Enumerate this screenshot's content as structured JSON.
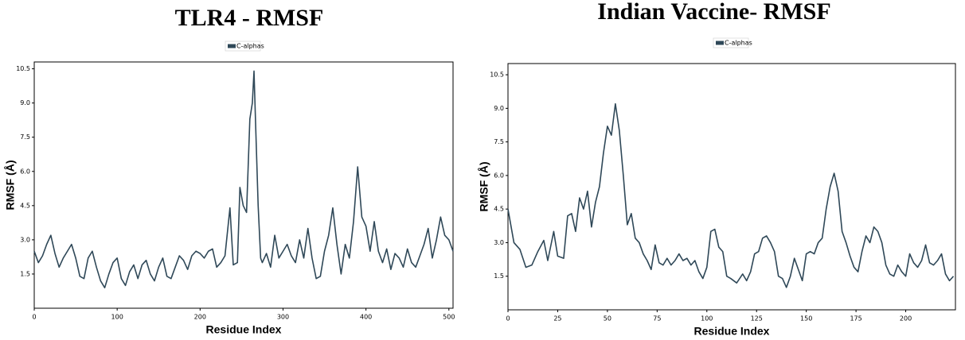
{
  "chart_data": [
    {
      "type": "line",
      "title": "TLR4 - RMSF",
      "x_label": "Residue Index",
      "y_label": "RMSF (Å)",
      "x": [
        0,
        5,
        10,
        15,
        20,
        25,
        30,
        35,
        40,
        45,
        50,
        55,
        60,
        65,
        70,
        75,
        80,
        85,
        90,
        95,
        100,
        105,
        110,
        115,
        120,
        125,
        130,
        135,
        140,
        145,
        150,
        155,
        160,
        165,
        170,
        175,
        180,
        185,
        190,
        195,
        200,
        205,
        210,
        215,
        220,
        225,
        230,
        236,
        240,
        245,
        248,
        252,
        256,
        260,
        263,
        265,
        267,
        270,
        273,
        275,
        280,
        285,
        290,
        295,
        300,
        305,
        310,
        315,
        320,
        325,
        330,
        335,
        340,
        345,
        350,
        355,
        360,
        365,
        370,
        375,
        380,
        385,
        390,
        395,
        400,
        405,
        410,
        415,
        420,
        425,
        430,
        435,
        440,
        445,
        450,
        455,
        460,
        465,
        470,
        475,
        480,
        485,
        490,
        495,
        500,
        505
      ],
      "series": [
        {
          "name": "C-alphas",
          "color": "#2f4858",
          "values": [
            2.5,
            2.0,
            2.3,
            2.8,
            3.2,
            2.4,
            1.8,
            2.2,
            2.5,
            2.8,
            2.2,
            1.4,
            1.3,
            2.2,
            2.5,
            1.8,
            1.2,
            0.9,
            1.5,
            2.0,
            2.2,
            1.3,
            1.0,
            1.6,
            1.9,
            1.3,
            1.9,
            2.1,
            1.5,
            1.2,
            1.8,
            2.2,
            1.4,
            1.3,
            1.8,
            2.3,
            2.1,
            1.7,
            2.3,
            2.5,
            2.4,
            2.2,
            2.5,
            2.6,
            1.8,
            2.0,
            2.3,
            4.4,
            1.9,
            2.0,
            5.3,
            4.5,
            4.2,
            8.3,
            9.0,
            10.4,
            8.0,
            4.5,
            2.2,
            2.0,
            2.4,
            1.8,
            3.2,
            2.2,
            2.5,
            2.8,
            2.3,
            2.0,
            3.0,
            2.2,
            3.5,
            2.2,
            1.3,
            1.4,
            2.5,
            3.2,
            4.4,
            2.8,
            1.5,
            2.8,
            2.2,
            3.8,
            6.2,
            4.0,
            3.6,
            2.5,
            3.8,
            2.5,
            2.0,
            2.6,
            1.7,
            2.4,
            2.2,
            1.8,
            2.6,
            2.0,
            1.8,
            2.3,
            2.8,
            3.5,
            2.2,
            3.0,
            4.0,
            3.2,
            3.0,
            2.5
          ]
        }
      ],
      "xlim": [
        0,
        505
      ],
      "ylim": [
        0,
        10.8
      ],
      "xticks": [
        0,
        100,
        200,
        300,
        400,
        500
      ],
      "yticks": [
        1.5,
        {
          "value": 3,
          "label": "3.0"
        },
        4.5,
        {
          "value": 6,
          "label": "6.0"
        },
        7.5,
        {
          "value": 9,
          "label": "9.0"
        },
        10.5
      ]
    },
    {
      "type": "line",
      "title": "Indian Vaccine- RMSF",
      "x_label": "Residue Index",
      "y_label": "RMSF (Å)",
      "x": [
        0,
        3,
        6,
        9,
        12,
        15,
        18,
        20,
        23,
        25,
        28,
        30,
        32,
        34,
        36,
        38,
        40,
        42,
        44,
        46,
        48,
        50,
        52,
        54,
        56,
        58,
        60,
        62,
        64,
        66,
        68,
        70,
        72,
        74,
        76,
        78,
        80,
        82,
        84,
        86,
        88,
        90,
        92,
        94,
        96,
        98,
        100,
        102,
        104,
        106,
        108,
        110,
        112,
        115,
        118,
        120,
        122,
        124,
        126,
        128,
        130,
        132,
        134,
        136,
        138,
        140,
        142,
        144,
        146,
        148,
        150,
        152,
        154,
        156,
        158,
        160,
        162,
        164,
        166,
        168,
        170,
        172,
        174,
        176,
        178,
        180,
        182,
        184,
        186,
        188,
        190,
        192,
        194,
        196,
        198,
        200,
        202,
        204,
        206,
        208,
        210,
        212,
        214,
        216,
        218,
        220,
        222,
        224
      ],
      "series": [
        {
          "name": "C-alphas",
          "color": "#2f4858",
          "values": [
            4.5,
            3.0,
            2.7,
            1.9,
            2.0,
            2.6,
            3.1,
            2.2,
            3.5,
            2.4,
            2.3,
            4.2,
            4.3,
            3.5,
            5.0,
            4.5,
            5.3,
            3.7,
            4.8,
            5.5,
            7.0,
            8.2,
            7.8,
            9.2,
            8.0,
            6.0,
            3.8,
            4.3,
            3.2,
            3.0,
            2.5,
            2.2,
            1.8,
            2.9,
            2.1,
            2.0,
            2.3,
            2.0,
            2.2,
            2.5,
            2.2,
            2.3,
            2.0,
            2.2,
            1.7,
            1.4,
            1.9,
            3.5,
            3.6,
            2.8,
            2.6,
            1.5,
            1.4,
            1.2,
            1.6,
            1.3,
            1.7,
            2.5,
            2.6,
            3.2,
            3.3,
            3.0,
            2.6,
            1.5,
            1.4,
            1.0,
            1.5,
            2.3,
            1.8,
            1.3,
            2.5,
            2.6,
            2.5,
            3.0,
            3.2,
            4.5,
            5.5,
            6.1,
            5.3,
            3.5,
            3.0,
            2.4,
            1.9,
            1.7,
            2.6,
            3.3,
            3.0,
            3.7,
            3.5,
            3.0,
            2.0,
            1.6,
            1.5,
            2.0,
            1.7,
            1.5,
            2.5,
            2.1,
            1.9,
            2.2,
            2.9,
            2.1,
            2.0,
            2.2,
            2.5,
            1.6,
            1.3,
            1.5
          ]
        }
      ],
      "xlim": [
        0,
        225
      ],
      "ylim": [
        0,
        11
      ],
      "xticks": [
        0,
        25,
        50,
        75,
        100,
        125,
        150,
        175,
        200
      ],
      "yticks": [
        1.5,
        {
          "value": 3,
          "label": "3.0"
        },
        4.5,
        {
          "value": 6,
          "label": "6.0"
        },
        7.5,
        {
          "value": 9,
          "label": "9.0"
        },
        10.5
      ]
    }
  ]
}
